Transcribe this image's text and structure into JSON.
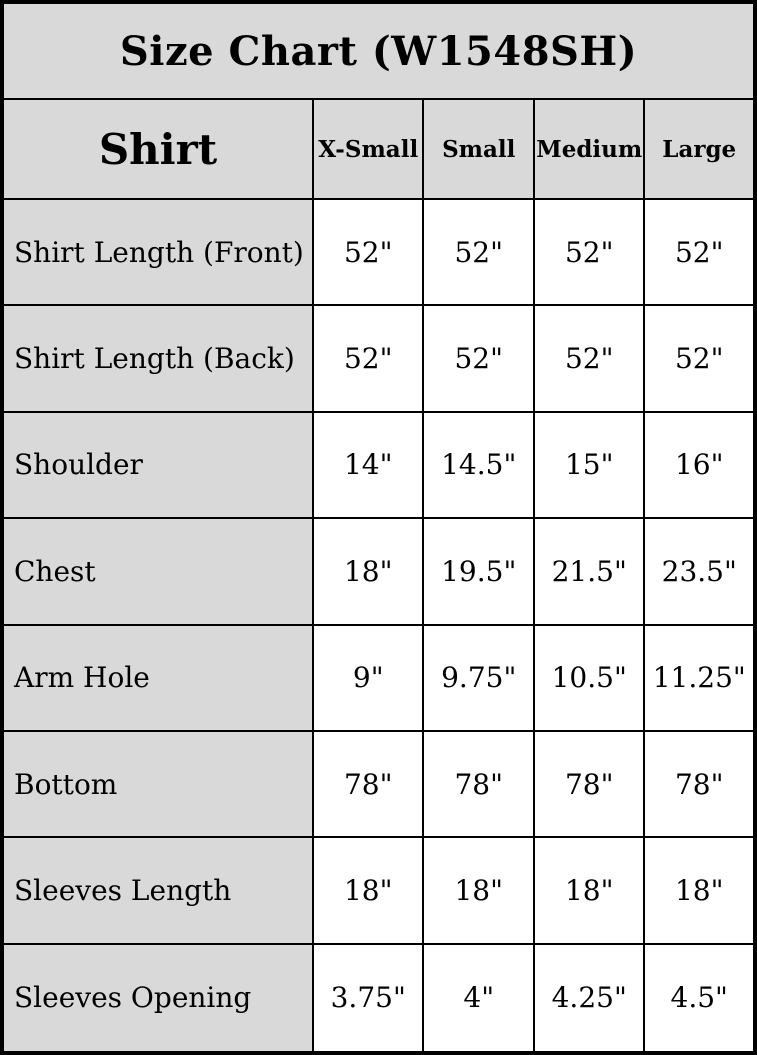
{
  "chart_data": {
    "type": "table",
    "title": "Size Chart (W1548SH)",
    "header": {
      "label": "Shirt",
      "sizes": [
        "X-Small",
        "Small",
        "Medium",
        "Large"
      ]
    },
    "rows": [
      {
        "label": "Shirt Length (Front)",
        "values": [
          "52\"",
          "52\"",
          "52\"",
          "52\""
        ]
      },
      {
        "label": "Shirt Length (Back)",
        "values": [
          "52\"",
          "52\"",
          "52\"",
          "52\""
        ]
      },
      {
        "label": "Shoulder",
        "values": [
          "14\"",
          "14.5\"",
          "15\"",
          "16\""
        ]
      },
      {
        "label": "Chest",
        "values": [
          "18\"",
          "19.5\"",
          "21.5\"",
          "23.5\""
        ]
      },
      {
        "label": "Arm Hole",
        "values": [
          "9\"",
          "9.75\"",
          "10.5\"",
          "11.25\""
        ]
      },
      {
        "label": "Bottom",
        "values": [
          "78\"",
          "78\"",
          "78\"",
          "78\""
        ]
      },
      {
        "label": "Sleeves Length",
        "values": [
          "18\"",
          "18\"",
          "18\"",
          "18\""
        ]
      },
      {
        "label": "Sleeves Opening",
        "values": [
          "3.75\"",
          "4\"",
          "4.25\"",
          "4.5\""
        ]
      }
    ],
    "layout": {
      "grid": "on",
      "title_position": "top"
    }
  },
  "colors": {
    "header_background": "#d9d9d9",
    "label_background": "#d9d9d9",
    "data_background": "#ffffff",
    "border": "#000000",
    "text": "#000000"
  }
}
